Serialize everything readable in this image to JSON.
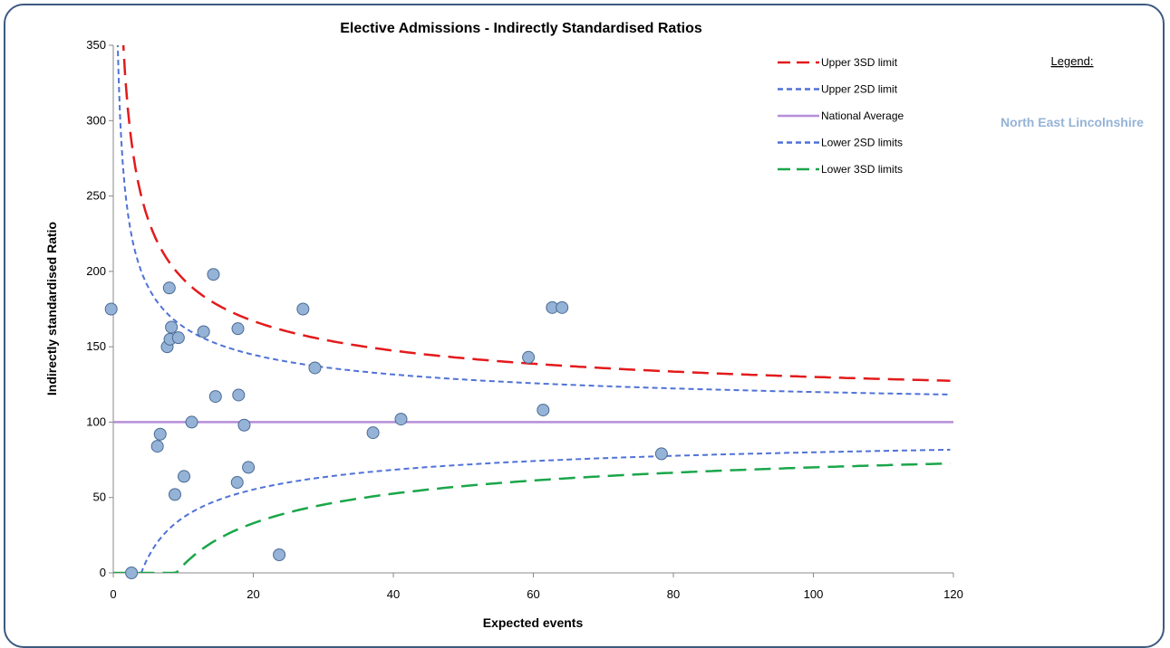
{
  "chart_data": {
    "type": "scatter",
    "title": "Elective Admissions - Indirectly Standardised Ratios",
    "xlabel": "Expected events",
    "ylabel": "Indirectly standardised Ratio",
    "xlim": [
      0,
      120
    ],
    "ylim": [
      0,
      350
    ],
    "x_ticks": [
      0,
      20,
      40,
      60,
      80,
      100,
      120
    ],
    "x_tick_labels": [
      "0",
      "20",
      "40",
      "60",
      "80",
      "100",
      "120"
    ],
    "y_ticks": [
      0,
      50,
      100,
      150,
      200,
      250,
      300,
      350
    ],
    "y_tick_labels": [
      "0",
      "50",
      "100",
      "150",
      "200",
      "250",
      "300",
      "350"
    ],
    "grid": false,
    "national_average": 100,
    "legend_heading": "Legend:",
    "highlight_area": "North East Lincolnshire",
    "legend": [
      {
        "label": "Upper 3SD limit",
        "color": "#e31a1c",
        "style": "long-dash"
      },
      {
        "label": "Upper 2SD limit",
        "color": "#4f72d6",
        "style": "short-dash"
      },
      {
        "label": "National Average",
        "color": "#b58ed8",
        "style": "solid"
      },
      {
        "label": "Lower 2SD limits",
        "color": "#4f72d6",
        "style": "short-dash"
      },
      {
        "label": "Lower 3SD limits",
        "color": "#1aa64a",
        "style": "long-dash"
      }
    ],
    "series": [
      {
        "color": "#95b3d7",
        "points": [
          {
            "x": -0.3,
            "y": 175
          },
          {
            "x": 2.6,
            "y": 0
          },
          {
            "x": 6.3,
            "y": 84
          },
          {
            "x": 6.7,
            "y": 92
          },
          {
            "x": 7.7,
            "y": 150
          },
          {
            "x": 8.0,
            "y": 189
          },
          {
            "x": 8.1,
            "y": 155
          },
          {
            "x": 8.3,
            "y": 163
          },
          {
            "x": 8.8,
            "y": 52
          },
          {
            "x": 9.3,
            "y": 156
          },
          {
            "x": 10.1,
            "y": 64
          },
          {
            "x": 11.2,
            "y": 100
          },
          {
            "x": 12.9,
            "y": 160
          },
          {
            "x": 14.3,
            "y": 198
          },
          {
            "x": 14.6,
            "y": 117
          },
          {
            "x": 17.7,
            "y": 60
          },
          {
            "x": 17.8,
            "y": 162
          },
          {
            "x": 17.9,
            "y": 118
          },
          {
            "x": 18.7,
            "y": 98
          },
          {
            "x": 19.3,
            "y": 70
          },
          {
            "x": 23.7,
            "y": 12
          },
          {
            "x": 27.1,
            "y": 175
          },
          {
            "x": 28.8,
            "y": 136
          },
          {
            "x": 37.1,
            "y": 93
          },
          {
            "x": 41.1,
            "y": 102
          },
          {
            "x": 59.3,
            "y": 143
          },
          {
            "x": 61.4,
            "y": 108
          },
          {
            "x": 62.7,
            "y": 176
          },
          {
            "x": 64.1,
            "y": 176
          },
          {
            "x": 78.3,
            "y": 79
          }
        ]
      }
    ]
  }
}
